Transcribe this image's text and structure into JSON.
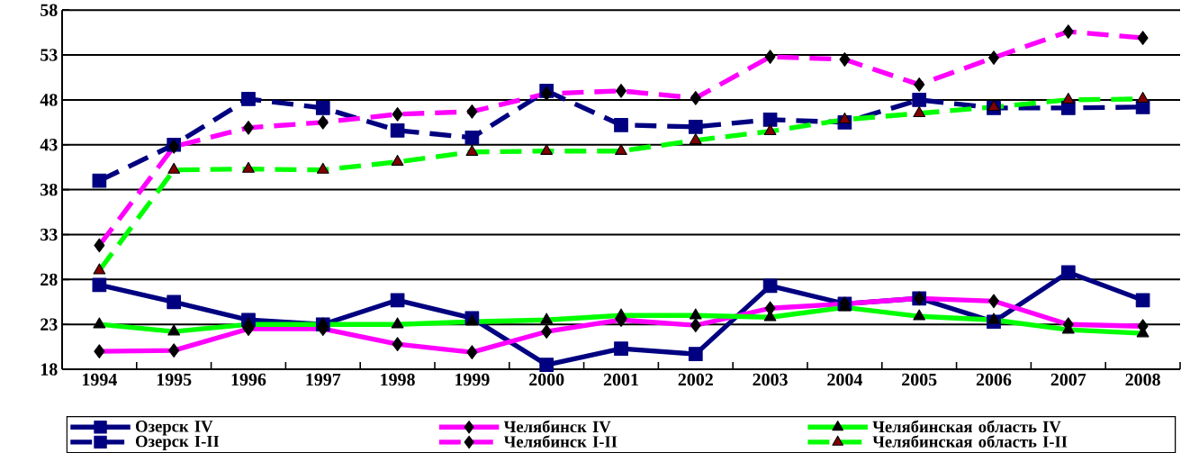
{
  "chart_data": {
    "type": "line",
    "categories": [
      "1994",
      "1995",
      "1996",
      "1997",
      "1998",
      "1999",
      "2000",
      "2001",
      "2002",
      "2003",
      "2004",
      "2005",
      "2006",
      "2007",
      "2008"
    ],
    "ylim": [
      18,
      58
    ],
    "yticks": [
      18,
      23,
      28,
      33,
      38,
      43,
      48,
      53,
      58
    ],
    "grid": "y",
    "legend": "bottom",
    "series": [
      {
        "name": "Озерск IV",
        "color": "#000080",
        "marker": "square",
        "line_style": "solid",
        "values": [
          27.4,
          25.5,
          23.5,
          23.0,
          25.7,
          23.7,
          18.5,
          20.3,
          19.7,
          27.3,
          25.3,
          25.9,
          23.3,
          28.8,
          25.7
        ]
      },
      {
        "name": "Озерск I-II",
        "color": "#000080",
        "marker": "square",
        "line_style": "dashed",
        "values": [
          39.0,
          43.0,
          48.1,
          47.1,
          44.6,
          43.8,
          49.0,
          45.2,
          45.0,
          45.8,
          45.5,
          48.0,
          47.1,
          47.1,
          47.2
        ]
      },
      {
        "name": "Челябинск IV",
        "color": "#ff00ff",
        "marker": "diamond",
        "line_style": "solid",
        "values": [
          20.0,
          20.1,
          22.5,
          22.5,
          20.8,
          19.9,
          22.2,
          23.5,
          22.9,
          24.8,
          25.3,
          25.9,
          25.6,
          23.0,
          22.8
        ]
      },
      {
        "name": "Челябинск I-II",
        "color": "#ff00ff",
        "marker": "diamond",
        "line_style": "dashed",
        "values": [
          31.8,
          42.8,
          44.9,
          45.5,
          46.4,
          46.7,
          48.7,
          49.0,
          48.2,
          52.8,
          52.5,
          49.7,
          52.7,
          55.6,
          54.9
        ]
      },
      {
        "name": "Челябинская область IV",
        "color": "#00ff00",
        "marker": "triangle",
        "line_style": "solid",
        "values": [
          23.0,
          22.2,
          23.0,
          23.0,
          23.0,
          23.3,
          23.5,
          24.0,
          24.0,
          23.8,
          24.9,
          23.9,
          23.5,
          22.4,
          22.0
        ]
      },
      {
        "name": "Челябинская область I-II",
        "color": "#00ff00",
        "marker": "triangle",
        "line_style": "dashed",
        "values": [
          29.0,
          40.2,
          40.3,
          40.2,
          41.1,
          42.2,
          42.3,
          42.3,
          43.5,
          44.5,
          45.8,
          46.5,
          47.2,
          48.0,
          48.1
        ]
      }
    ]
  }
}
